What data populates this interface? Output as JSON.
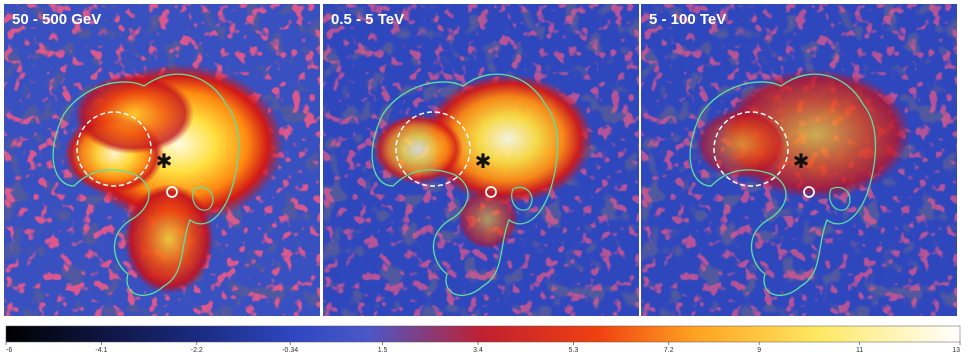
{
  "panels": [
    {
      "label": "50 - 500 GeV"
    },
    {
      "label": "0.5 - 5 TeV"
    },
    {
      "label": "5 - 100 TeV"
    }
  ],
  "colorbar": {
    "range": [
      -6,
      13
    ],
    "ticks": [
      -6,
      {
        "value": -4.1,
        "label": "-4.1"
      },
      {
        "value": -2.2,
        "label": "-2.2"
      },
      {
        "value": -0.34,
        "label": "-0.34"
      },
      1.5,
      3.4,
      5.3,
      7.2,
      9,
      11,
      13
    ]
  }
}
